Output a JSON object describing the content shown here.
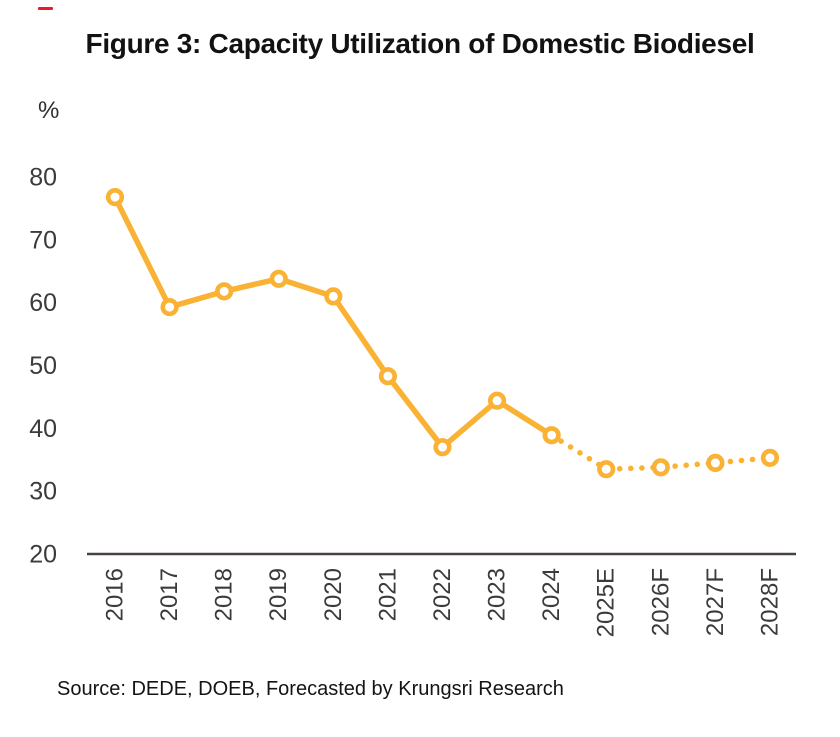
{
  "header": {
    "title": "Figure 3: Capacity Utilization of Domestic Biodiesel"
  },
  "chart_data": {
    "type": "line",
    "title": "Figure 3: Capacity Utilization of Domestic Biodiesel",
    "unit_label": "%",
    "xlabel": "",
    "ylabel": "%",
    "categories": [
      "2016",
      "2017",
      "2018",
      "2019",
      "2020",
      "2021",
      "2022",
      "2023",
      "2024",
      "2025E",
      "2026F",
      "2027F",
      "2028F"
    ],
    "series": [
      {
        "name": "Capacity utilization of domestic biodiesel",
        "values": [
          76.8,
          59.3,
          61.8,
          63.8,
          61.0,
          48.3,
          37.0,
          44.4,
          38.9,
          33.5,
          33.8,
          34.5,
          35.3
        ]
      }
    ],
    "forecast_start_index": 8,
    "forecast_style": "dotted",
    "yticks": [
      20,
      30,
      40,
      50,
      60,
      70,
      80
    ],
    "ylim": [
      20,
      80
    ],
    "grid": false,
    "legend_position": "none",
    "line_color": "#F9B234",
    "marker_fill": "#FFFFFF",
    "axis_color": "#4A4145",
    "tick_text_color": "#3B3B3B"
  },
  "footer": {
    "source": "Source: DEDE, DOEB, Forecasted by Krungsri Research"
  },
  "decorations": {
    "red_mark_color": "#ED1C24"
  }
}
